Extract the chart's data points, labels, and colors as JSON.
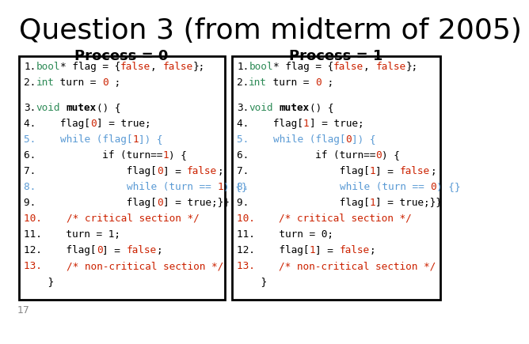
{
  "title": "Question 3 (from midterm of 2005)",
  "subtitle_left": "Process = 0",
  "subtitle_right": "Process = 1",
  "footer": "17",
  "bg_color": "#ffffff",
  "title_color": "#000000",
  "subtitle_color": "#000000",
  "box_border_color": "#000000",
  "code_left": [
    [
      [
        "1.",
        "#000000",
        "normal"
      ],
      [
        "bool",
        "#2e8b57",
        "normal"
      ],
      [
        "* flag = {",
        "#000000",
        "normal"
      ],
      [
        "false",
        "#cc2200",
        "normal"
      ],
      [
        ", ",
        "#000000",
        "normal"
      ],
      [
        "false",
        "#cc2200",
        "normal"
      ],
      [
        "};",
        "#000000",
        "normal"
      ]
    ],
    [
      [
        "2.",
        "#000000",
        "normal"
      ],
      [
        "int",
        "#2e8b57",
        "normal"
      ],
      [
        " turn = ",
        "#000000",
        "normal"
      ],
      [
        "0",
        "#cc2200",
        "normal"
      ],
      [
        " ;",
        "#000000",
        "normal"
      ]
    ],
    null,
    [
      [
        "3.",
        "#000000",
        "normal"
      ],
      [
        "void",
        "#2e8b57",
        "normal"
      ],
      [
        " ",
        "#000000",
        "normal"
      ],
      [
        "mutex",
        "#000000",
        "bold"
      ],
      [
        "() {",
        "#000000",
        "normal"
      ]
    ],
    [
      [
        "4.    flag[",
        "#000000",
        "normal"
      ],
      [
        "0",
        "#cc2200",
        "normal"
      ],
      [
        "] = true;",
        "#000000",
        "normal"
      ]
    ],
    [
      [
        "5.    ",
        "#5b9bd5",
        "normal"
      ],
      [
        "while (flag[",
        "#5b9bd5",
        "normal"
      ],
      [
        "1",
        "#cc2200",
        "normal"
      ],
      [
        "]) {",
        "#5b9bd5",
        "normal"
      ]
    ],
    [
      [
        "6.           if (turn==",
        "#000000",
        "normal"
      ],
      [
        "1",
        "#cc2200",
        "normal"
      ],
      [
        ") {",
        "#000000",
        "normal"
      ]
    ],
    [
      [
        "7.               flag[",
        "#000000",
        "normal"
      ],
      [
        "0",
        "#cc2200",
        "normal"
      ],
      [
        "] = ",
        "#000000",
        "normal"
      ],
      [
        "false",
        "#cc2200",
        "normal"
      ],
      [
        ";",
        "#000000",
        "normal"
      ]
    ],
    [
      [
        "8.               ",
        "#5b9bd5",
        "normal"
      ],
      [
        "while (turn == ",
        "#5b9bd5",
        "normal"
      ],
      [
        "1",
        "#cc2200",
        "normal"
      ],
      [
        ") {}",
        "#5b9bd5",
        "normal"
      ]
    ],
    [
      [
        "9.               flag[",
        "#000000",
        "normal"
      ],
      [
        "0",
        "#cc2200",
        "normal"
      ],
      [
        "] = true;}}",
        "#000000",
        "normal"
      ]
    ],
    [
      [
        "10.    ",
        "#cc2200",
        "normal"
      ],
      [
        "/* critical section */",
        "#cc2200",
        "normal"
      ]
    ],
    [
      [
        "11.    turn = 1;",
        "#000000",
        "normal"
      ]
    ],
    [
      [
        "12.    flag[",
        "#000000",
        "normal"
      ],
      [
        "0",
        "#cc2200",
        "normal"
      ],
      [
        "] = ",
        "#000000",
        "normal"
      ],
      [
        "false",
        "#cc2200",
        "normal"
      ],
      [
        ";",
        "#000000",
        "normal"
      ]
    ],
    [
      [
        "13.    ",
        "#cc2200",
        "normal"
      ],
      [
        "/* non-critical section */",
        "#cc2200",
        "normal"
      ]
    ],
    [
      [
        "    }",
        "#000000",
        "normal"
      ]
    ]
  ],
  "code_right": [
    [
      [
        "1.",
        "#000000",
        "normal"
      ],
      [
        "bool",
        "#2e8b57",
        "normal"
      ],
      [
        "* flag = {",
        "#000000",
        "normal"
      ],
      [
        "false",
        "#cc2200",
        "normal"
      ],
      [
        ", ",
        "#000000",
        "normal"
      ],
      [
        "false",
        "#cc2200",
        "normal"
      ],
      [
        "};",
        "#000000",
        "normal"
      ]
    ],
    [
      [
        "2.",
        "#000000",
        "normal"
      ],
      [
        "int",
        "#2e8b57",
        "normal"
      ],
      [
        " turn = ",
        "#000000",
        "normal"
      ],
      [
        "0",
        "#cc2200",
        "normal"
      ],
      [
        " ;",
        "#000000",
        "normal"
      ]
    ],
    null,
    [
      [
        "3.",
        "#000000",
        "normal"
      ],
      [
        "void",
        "#2e8b57",
        "normal"
      ],
      [
        " ",
        "#000000",
        "normal"
      ],
      [
        "mutex",
        "#000000",
        "bold"
      ],
      [
        "() {",
        "#000000",
        "normal"
      ]
    ],
    [
      [
        "4.    flag[",
        "#000000",
        "normal"
      ],
      [
        "1",
        "#cc2200",
        "normal"
      ],
      [
        "] = true;",
        "#000000",
        "normal"
      ]
    ],
    [
      [
        "5.    ",
        "#5b9bd5",
        "normal"
      ],
      [
        "while (flag[",
        "#5b9bd5",
        "normal"
      ],
      [
        "0",
        "#cc2200",
        "normal"
      ],
      [
        "]) {",
        "#5b9bd5",
        "normal"
      ]
    ],
    [
      [
        "6.           if (turn==",
        "#000000",
        "normal"
      ],
      [
        "0",
        "#cc2200",
        "normal"
      ],
      [
        ") {",
        "#000000",
        "normal"
      ]
    ],
    [
      [
        "7.               flag[",
        "#000000",
        "normal"
      ],
      [
        "1",
        "#cc2200",
        "normal"
      ],
      [
        "] = ",
        "#000000",
        "normal"
      ],
      [
        "false",
        "#cc2200",
        "normal"
      ],
      [
        ";",
        "#000000",
        "normal"
      ]
    ],
    [
      [
        "8.               ",
        "#5b9bd5",
        "normal"
      ],
      [
        "while (turn == ",
        "#5b9bd5",
        "normal"
      ],
      [
        "0",
        "#cc2200",
        "normal"
      ],
      [
        ") {}",
        "#5b9bd5",
        "normal"
      ]
    ],
    [
      [
        "9.               flag[",
        "#000000",
        "normal"
      ],
      [
        "1",
        "#cc2200",
        "normal"
      ],
      [
        "] = true;}}",
        "#000000",
        "normal"
      ]
    ],
    [
      [
        "10.    ",
        "#cc2200",
        "normal"
      ],
      [
        "/* critical section */",
        "#cc2200",
        "normal"
      ]
    ],
    [
      [
        "11.    turn = 0;",
        "#000000",
        "normal"
      ]
    ],
    [
      [
        "12.    flag[",
        "#000000",
        "normal"
      ],
      [
        "1",
        "#cc2200",
        "normal"
      ],
      [
        "] = ",
        "#000000",
        "normal"
      ],
      [
        "false",
        "#cc2200",
        "normal"
      ],
      [
        ";",
        "#000000",
        "normal"
      ]
    ],
    [
      [
        "13.    ",
        "#cc2200",
        "normal"
      ],
      [
        "/* non-critical section */",
        "#cc2200",
        "normal"
      ]
    ],
    [
      [
        "    }",
        "#000000",
        "normal"
      ]
    ]
  ]
}
